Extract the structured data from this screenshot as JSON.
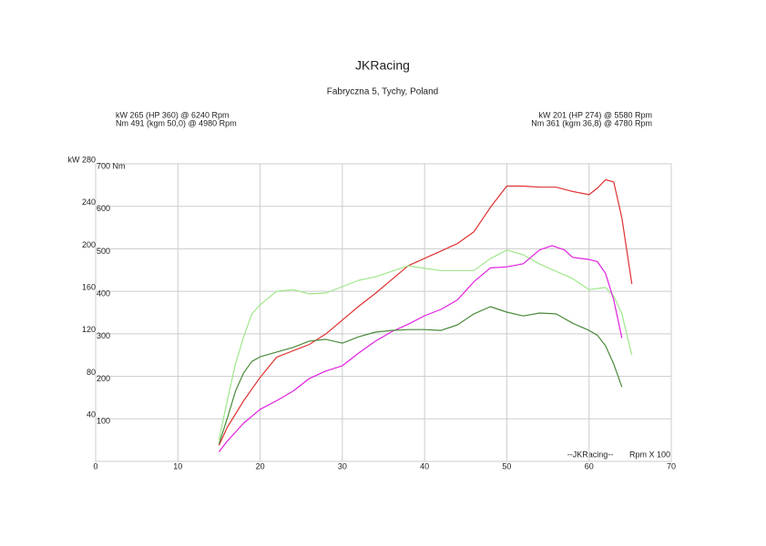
{
  "chart_data": {
    "type": "line",
    "title": "JKRacing",
    "subtitle": "Fabryczna 5, Tychy, Poland",
    "annotations_left": [
      "kW 265 (HP 360) @ 6240 Rpm",
      "Nm 491 (kgm 50,0) @ 4980 Rpm"
    ],
    "annotations_right": [
      "kW 201 (HP 274) @ 5580 Rpm",
      "Nm 361 (kgm 36,8) @ 4780 Rpm"
    ],
    "watermark": "--JKRacing--",
    "x_label": "Rpm X 100",
    "xlim": [
      0,
      70
    ],
    "xticks": [
      0,
      10,
      20,
      30,
      40,
      50,
      60,
      70
    ],
    "ylim": [
      0,
      280
    ],
    "yticks": [
      40,
      80,
      120,
      160,
      200,
      240,
      {
        "value": 280,
        "label": "kW 280"
      }
    ],
    "y2lim": [
      0,
      700
    ],
    "y2ticks": [
      100,
      200,
      300,
      400,
      500,
      600,
      {
        "value": 700,
        "label": "700 Nm"
      }
    ],
    "grid": true,
    "series": [
      {
        "color": "#e03030",
        "axis": "y",
        "x": [
          15,
          16,
          18,
          20,
          22,
          24,
          26,
          28,
          30,
          32,
          34,
          36,
          38,
          40,
          42,
          44,
          46,
          48,
          50,
          52,
          54,
          56,
          58,
          60,
          61,
          62,
          63,
          64,
          65.2
        ],
        "values": [
          15,
          32,
          57,
          79,
          98,
          104,
          110,
          120,
          133,
          146,
          158,
          171,
          184,
          191,
          198,
          205,
          216,
          239,
          259,
          259,
          258,
          258,
          254,
          251,
          257,
          265,
          263,
          229,
          167
        ]
      },
      {
        "color": "#9ee88a",
        "axis": "y2",
        "x": [
          15,
          16,
          17,
          18,
          19,
          20,
          22,
          24,
          26,
          28,
          30,
          32,
          34,
          36,
          38,
          40,
          42,
          44,
          46,
          48,
          50,
          52,
          54,
          56,
          58,
          60,
          62,
          63,
          64,
          65.2
        ],
        "values": [
          51,
          143,
          229,
          293,
          347,
          368,
          400,
          404,
          394,
          396,
          411,
          426,
          434,
          447,
          460,
          454,
          449,
          449,
          449,
          477,
          497,
          486,
          464,
          447,
          430,
          404,
          409,
          389,
          347,
          250
        ]
      },
      {
        "color": "#e020e0",
        "axis": "y",
        "x": [
          15,
          16,
          18,
          20,
          22,
          24,
          26,
          28,
          30,
          32,
          34,
          36,
          38,
          40,
          42,
          44,
          46,
          48,
          50,
          52,
          54,
          55.5,
          57,
          58,
          60,
          61,
          62,
          63,
          64
        ],
        "values": [
          9,
          19,
          36,
          49,
          57,
          66,
          78,
          85,
          90,
          102,
          113,
          122,
          129,
          137,
          143,
          152,
          169,
          182,
          183,
          186,
          199,
          203,
          199,
          192,
          190,
          188,
          177,
          152,
          116
        ]
      },
      {
        "color": "#4a8a3a",
        "axis": "y2",
        "x": [
          15,
          16,
          17,
          18,
          19,
          20,
          22,
          24,
          26,
          28,
          30,
          32,
          34,
          36,
          38,
          40,
          42,
          44,
          46,
          48,
          50,
          52,
          54,
          56,
          58,
          60,
          61,
          62,
          63,
          64
        ],
        "values": [
          41,
          101,
          165,
          208,
          235,
          246,
          257,
          268,
          283,
          287,
          278,
          293,
          304,
          308,
          310,
          310,
          308,
          321,
          347,
          364,
          351,
          342,
          349,
          347,
          325,
          308,
          297,
          272,
          229,
          175
        ]
      }
    ]
  }
}
